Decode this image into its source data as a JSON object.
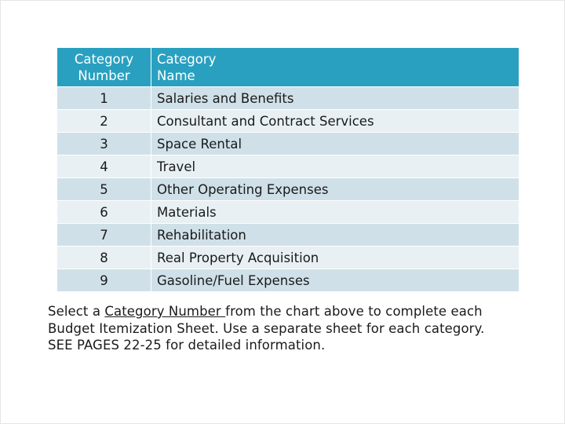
{
  "table": {
    "headers": {
      "number_line1": "Category",
      "number_line2": "Number",
      "name_line1": "Category",
      "name_line2": "Name"
    },
    "rows": [
      {
        "number": "1",
        "name": "Salaries and Benefits"
      },
      {
        "number": "2",
        "name": "Consultant and Contract Services"
      },
      {
        "number": "3",
        "name": "Space Rental"
      },
      {
        "number": "4",
        "name": "Travel"
      },
      {
        "number": "5",
        "name": "Other Operating Expenses"
      },
      {
        "number": "6",
        "name": "Materials"
      },
      {
        "number": "7",
        "name": "Rehabilitation"
      },
      {
        "number": "8",
        "name": "Real Property Acquisition"
      },
      {
        "number": "9",
        "name": "Gasoline/Fuel Expenses"
      }
    ]
  },
  "note": {
    "prefix": "Select a ",
    "underlined": "Category Number ",
    "line1_rest": "from the chart above to complete each",
    "line2": "Budget Itemization Sheet. Use a separate sheet for each category.",
    "line3": "SEE PAGES 22-25 for detailed information."
  },
  "colors": {
    "header_bg": "#2aa0c0",
    "row_odd": "#cfe0e8",
    "row_even": "#e8f0f4"
  }
}
